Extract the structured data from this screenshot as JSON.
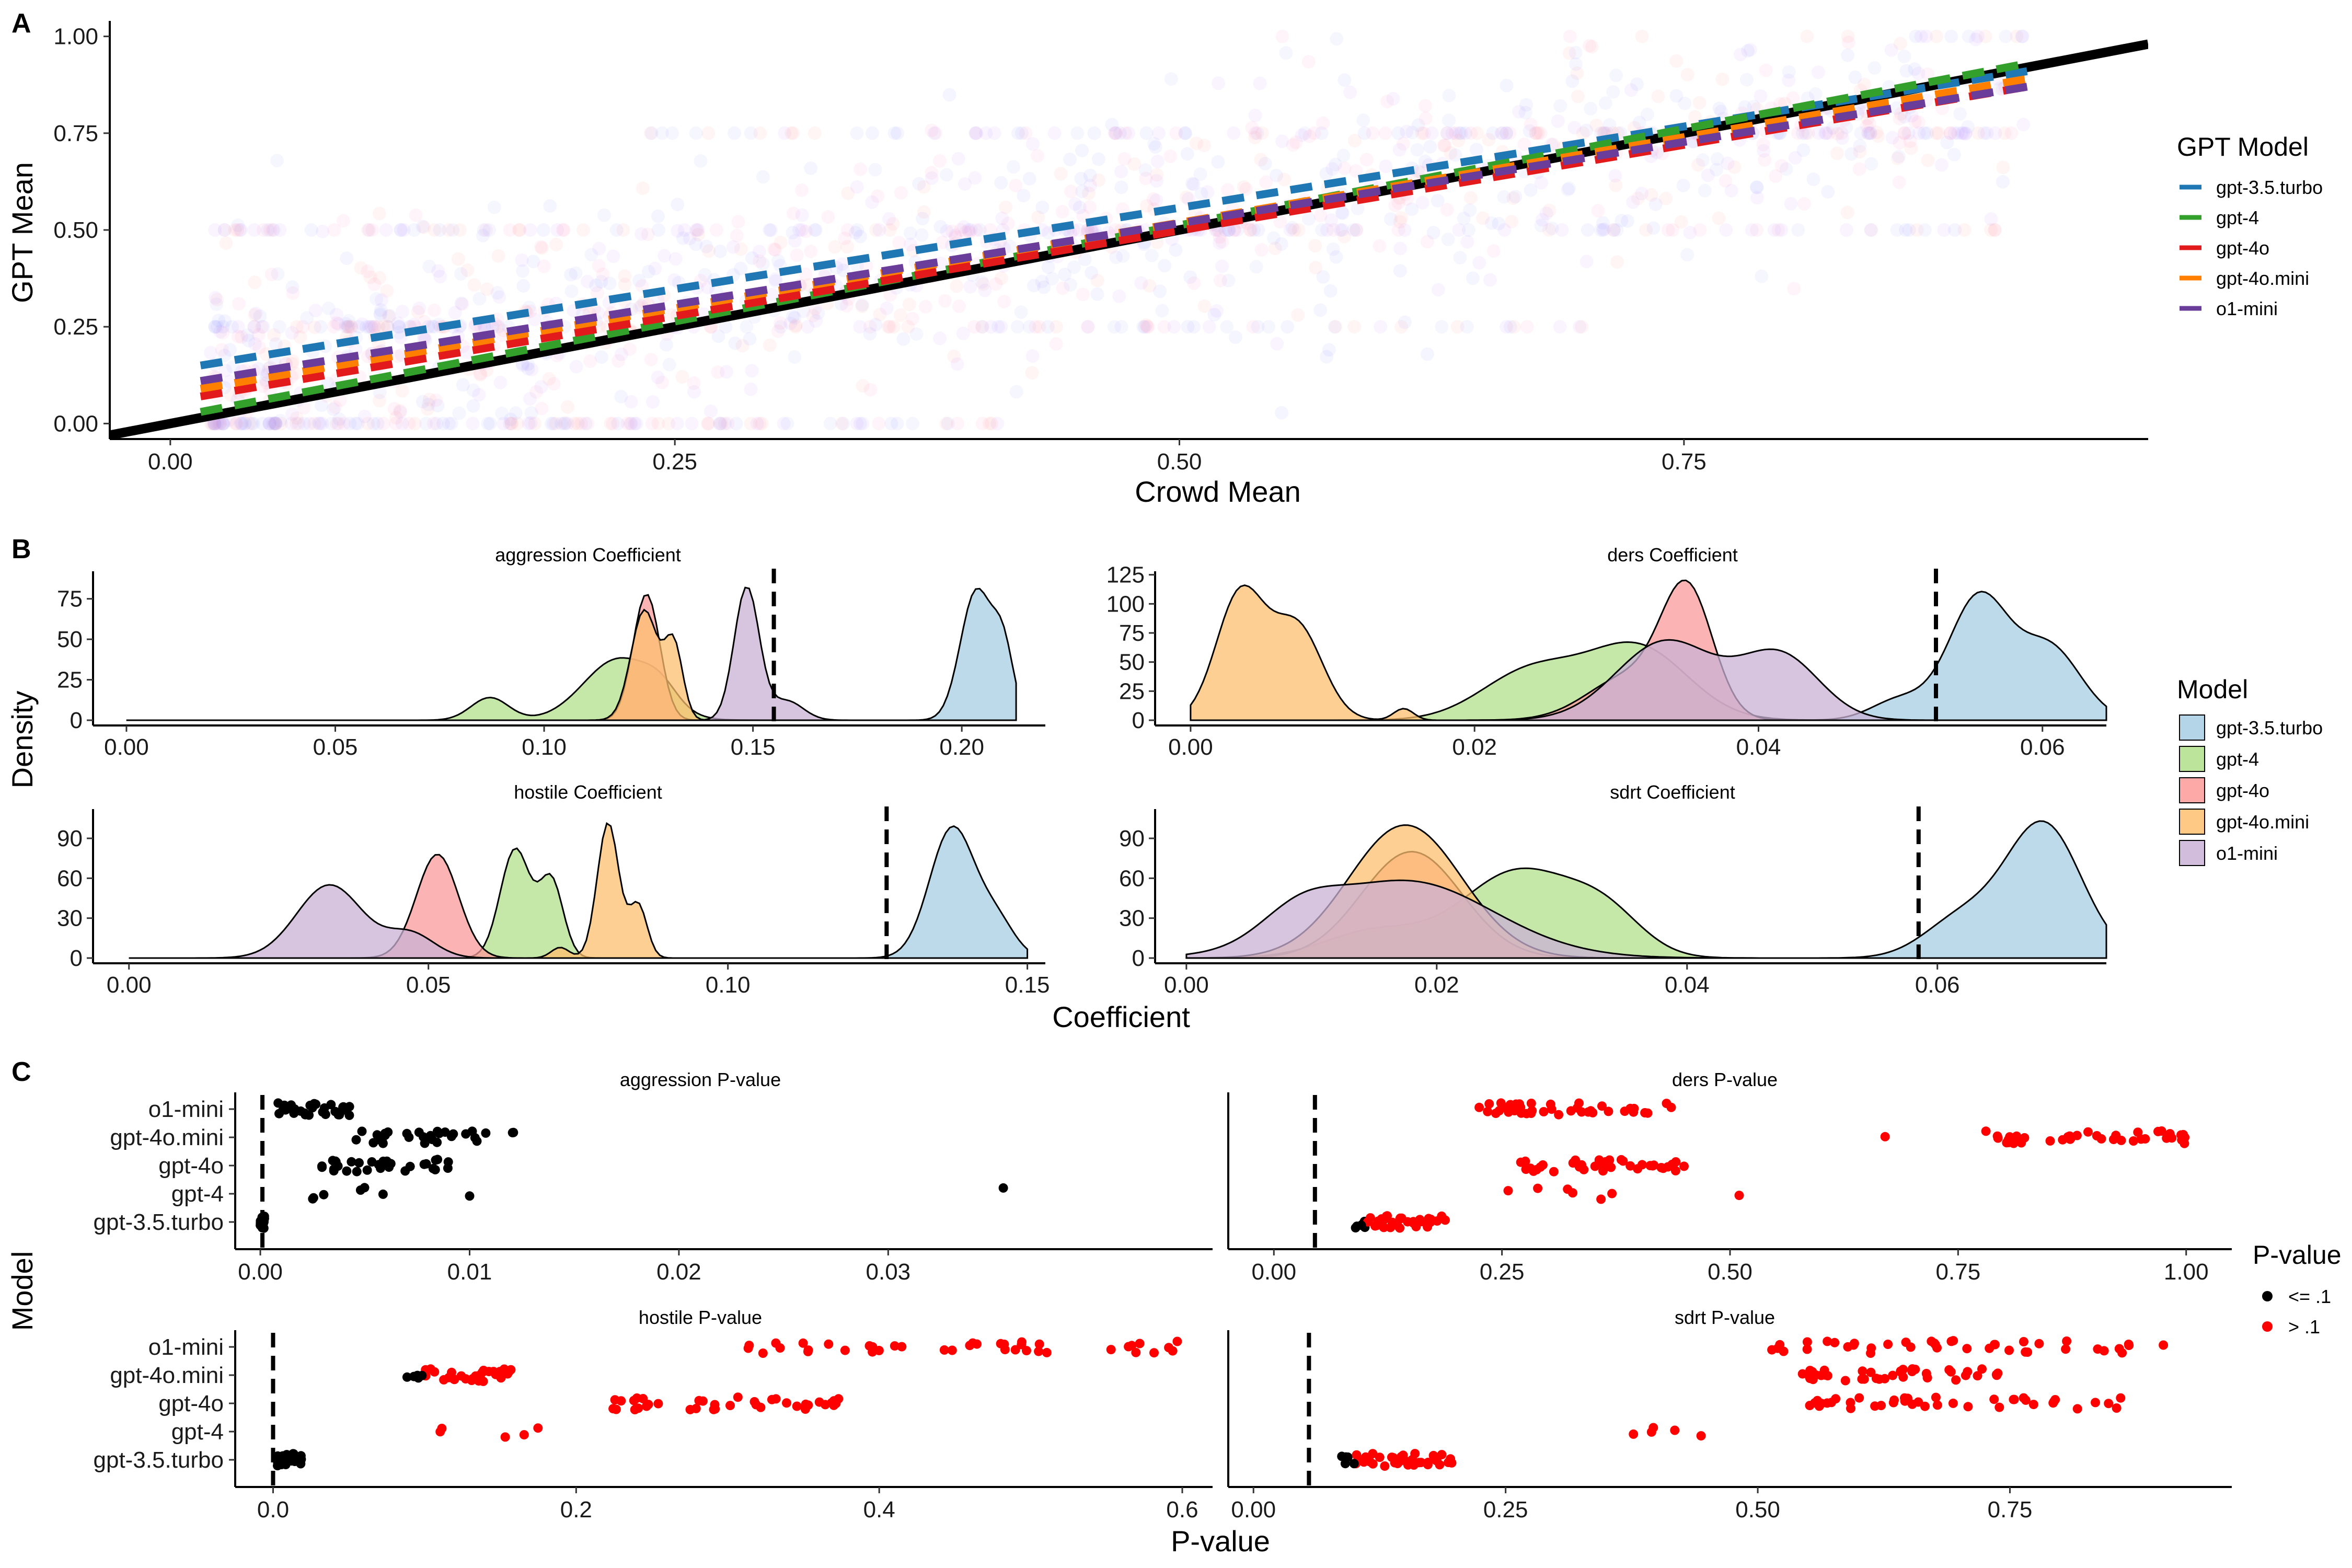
{
  "colors": {
    "gpt-3.5.turbo": "#1f78b4",
    "gpt-4": "#33a02c",
    "gpt-4o": "#e31a1c",
    "gpt-4o.mini": "#ff7f00",
    "o1-mini": "#6a3d9a",
    "fill_gpt-3.5.turbo": "#a6cee3",
    "fill_gpt-4": "#b2df8a",
    "fill_gpt-4o": "#fb9a99",
    "fill_gpt-4o.mini": "#fdbf6f",
    "fill_o1-mini": "#cab2d6",
    "pvalue_low": "#000000",
    "pvalue_high": "#ff0000"
  },
  "panels": {
    "A": {
      "letter": "A"
    },
    "B": {
      "letter": "B"
    },
    "C": {
      "letter": "C"
    }
  },
  "legends": {
    "gpt_model": {
      "title": "GPT Model",
      "items": [
        "gpt-3.5.turbo",
        "gpt-4",
        "gpt-4o",
        "gpt-4o.mini",
        "o1-mini"
      ]
    },
    "model": {
      "title": "Model",
      "items": [
        "gpt-3.5.turbo",
        "gpt-4",
        "gpt-4o",
        "gpt-4o.mini",
        "o1-mini"
      ]
    },
    "pvalue": {
      "title": "P-value",
      "items": [
        "<= .1",
        "> .1"
      ]
    }
  },
  "chart_data": [
    {
      "type": "scatter",
      "panel": "A",
      "xlabel": "Crowd Mean",
      "ylabel": "GPT Mean",
      "xlim": [
        -0.03,
        0.98
      ],
      "ylim": [
        -0.04,
        1.04
      ],
      "xticks": [
        "0.00",
        "0.25",
        "0.50",
        "0.75"
      ],
      "xtick_values": [
        0,
        0.25,
        0.5,
        0.75
      ],
      "yticks": [
        "0.00",
        "0.25",
        "0.50",
        "0.75",
        "1.00"
      ],
      "ytick_values": [
        0,
        0.25,
        0.5,
        0.75,
        1.0
      ],
      "identity_line": {
        "x": [
          -0.03,
          0.98
        ],
        "y": [
          -0.03,
          0.98
        ]
      },
      "series": [
        {
          "name": "gpt-3.5.turbo",
          "fit_x": [
            0.015,
            0.92
          ],
          "fit_y": [
            0.15,
            0.91
          ]
        },
        {
          "name": "gpt-4",
          "fit_x": [
            0.015,
            0.92
          ],
          "fit_y": [
            0.03,
            0.93
          ]
        },
        {
          "name": "gpt-4o",
          "fit_x": [
            0.015,
            0.92
          ],
          "fit_y": [
            0.07,
            0.87
          ]
        },
        {
          "name": "gpt-4o.mini",
          "fit_x": [
            0.015,
            0.92
          ],
          "fit_y": [
            0.09,
            0.89
          ]
        },
        {
          "name": "o1-mini",
          "fit_x": [
            0.015,
            0.92
          ],
          "fit_y": [
            0.11,
            0.87
          ]
        }
      ]
    },
    {
      "type": "area",
      "panel": "B",
      "title": "aggression Coefficient",
      "xlim": [
        -0.008,
        0.22
      ],
      "xticks": [
        "0.00",
        "0.05",
        "0.10",
        "0.15",
        "0.20"
      ],
      "xtick_values": [
        0,
        0.05,
        0.1,
        0.15,
        0.2
      ],
      "ylim": [
        0,
        92
      ],
      "yticks": [
        "0",
        "25",
        "50",
        "75"
      ],
      "ytick_values": [
        0,
        25,
        50,
        75
      ],
      "range": [
        0,
        0.213
      ],
      "reference_line": 0.155,
      "series": [
        {
          "name": "gpt-3.5.turbo",
          "peaks": [
            [
              0.2035,
              80,
              0.0038
            ],
            [
              0.21,
              40,
              0.0025
            ]
          ]
        },
        {
          "name": "gpt-4",
          "peaks": [
            [
              0.087,
              14,
              0.0045
            ],
            [
              0.118,
              38,
              0.0085
            ],
            [
              0.128,
              10,
              0.004
            ]
          ]
        },
        {
          "name": "gpt-4o",
          "peaks": [
            [
              0.1245,
              78,
              0.0032
            ]
          ]
        },
        {
          "name": "gpt-4o.mini",
          "peaks": [
            [
              0.124,
              68,
              0.0032
            ],
            [
              0.131,
              46,
              0.0022
            ]
          ]
        },
        {
          "name": "o1-mini",
          "peaks": [
            [
              0.1485,
              82,
              0.003
            ],
            [
              0.158,
              12,
              0.004
            ]
          ]
        }
      ]
    },
    {
      "type": "area",
      "panel": "B",
      "title": "ders Coefficient",
      "xlim": [
        -0.0025,
        0.0645
      ],
      "xticks": [
        "0.00",
        "0.02",
        "0.04",
        "0.06"
      ],
      "xtick_values": [
        0,
        0.02,
        0.04,
        0.06
      ],
      "ylim": [
        0,
        128
      ],
      "yticks": [
        "0",
        "25",
        "50",
        "75",
        "100",
        "125"
      ],
      "ytick_values": [
        0,
        25,
        50,
        75,
        100,
        125
      ],
      "range": [
        0,
        0.0645
      ],
      "reference_line": 0.0525,
      "series": [
        {
          "name": "gpt-3.5.turbo",
          "peaks": [
            [
              0.0555,
              105,
              0.0021
            ],
            [
              0.0605,
              62,
              0.0022
            ],
            [
              0.05,
              18,
              0.002
            ]
          ]
        },
        {
          "name": "gpt-4",
          "peaks": [
            [
              0.024,
              42,
              0.0035
            ],
            [
              0.0315,
              62,
              0.0035
            ]
          ]
        },
        {
          "name": "gpt-4o",
          "peaks": [
            [
              0.035,
              104,
              0.0018
            ],
            [
              0.031,
              38,
              0.003
            ]
          ]
        },
        {
          "name": "gpt-4o.mini",
          "peaks": [
            [
              0.0035,
              108,
              0.0017
            ],
            [
              0.0075,
              80,
              0.0018
            ],
            [
              0.015,
              10,
              0.0007
            ]
          ]
        },
        {
          "name": "o1-mini",
          "peaks": [
            [
              0.0335,
              68,
              0.0035
            ],
            [
              0.0415,
              55,
              0.0028
            ]
          ]
        }
      ]
    },
    {
      "type": "area",
      "panel": "B",
      "title": "hostile Coefficient",
      "xlim": [
        -0.006,
        0.153
      ],
      "xticks": [
        "0.00",
        "0.05",
        "0.10",
        "0.15"
      ],
      "xtick_values": [
        0,
        0.05,
        0.1,
        0.15
      ],
      "ylim": [
        0,
        112
      ],
      "yticks": [
        "0",
        "30",
        "60",
        "90"
      ],
      "ytick_values": [
        0,
        30,
        60,
        90
      ],
      "range": [
        0,
        0.15
      ],
      "reference_line": 0.1265,
      "series": [
        {
          "name": "gpt-3.5.turbo",
          "peaks": [
            [
              0.1375,
              98,
              0.0038
            ],
            [
              0.145,
              25,
              0.003
            ]
          ]
        },
        {
          "name": "gpt-4",
          "peaks": [
            [
              0.0645,
              82,
              0.0025
            ],
            [
              0.0705,
              58,
              0.002
            ]
          ]
        },
        {
          "name": "gpt-4o",
          "peaks": [
            [
              0.0515,
              78,
              0.0035
            ]
          ]
        },
        {
          "name": "gpt-4o.mini",
          "peaks": [
            [
              0.08,
              102,
              0.0018
            ],
            [
              0.085,
              40,
              0.0015
            ],
            [
              0.072,
              8,
              0.0015
            ]
          ]
        },
        {
          "name": "o1-mini",
          "peaks": [
            [
              0.0335,
              55,
              0.0055
            ],
            [
              0.047,
              18,
              0.004
            ]
          ]
        }
      ]
    },
    {
      "type": "area",
      "panel": "B",
      "title": "sdrt Coefficient",
      "xlim": [
        -0.0025,
        0.0735
      ],
      "xticks": [
        "0.00",
        "0.02",
        "0.04",
        "0.06"
      ],
      "xtick_values": [
        0,
        0.02,
        0.04,
        0.06
      ],
      "ylim": [
        0,
        112
      ],
      "yticks": [
        "0",
        "30",
        "60",
        "90"
      ],
      "ytick_values": [
        0,
        30,
        60,
        90
      ],
      "range": [
        0,
        0.0735
      ],
      "reference_line": 0.0585,
      "series": [
        {
          "name": "gpt-3.5.turbo",
          "peaks": [
            [
              0.0685,
              100,
              0.003
            ],
            [
              0.062,
              30,
              0.003
            ]
          ]
        },
        {
          "name": "gpt-4",
          "peaks": [
            [
              0.0265,
              65,
              0.0045
            ],
            [
              0.0335,
              28,
              0.003
            ],
            [
              0.015,
              20,
              0.004
            ]
          ]
        },
        {
          "name": "gpt-4o",
          "peaks": [
            [
              0.018,
              80,
              0.004
            ]
          ]
        },
        {
          "name": "gpt-4o.mini",
          "peaks": [
            [
              0.0175,
              100,
              0.0045
            ]
          ]
        },
        {
          "name": "o1-mini",
          "peaks": [
            [
              0.0175,
              58,
              0.007
            ],
            [
              0.009,
              20,
              0.003
            ]
          ]
        }
      ]
    },
    {
      "type": "scatter",
      "panel": "C",
      "title": "aggression P-value",
      "xlim": [
        -0.0012,
        0.0455
      ],
      "xticks": [
        "0.00",
        "0.01",
        "0.02",
        "0.03"
      ],
      "xtick_values": [
        0,
        0.01,
        0.02,
        0.03
      ],
      "categories": [
        "gpt-3.5.turbo",
        "gpt-4",
        "gpt-4o",
        "gpt-4o.mini",
        "o1-mini"
      ],
      "reference_line": 0.0001,
      "series": [
        {
          "name": "gpt-3.5.turbo",
          "range": [
            0.0,
            0.0002
          ],
          "count": 30,
          "outliers": []
        },
        {
          "name": "gpt-4",
          "range": [
            0.0025,
            0.0062
          ],
          "count": 6,
          "outliers": [
            0.01,
            0.0355
          ]
        },
        {
          "name": "gpt-4o",
          "range": [
            0.0028,
            0.0095
          ],
          "count": 30,
          "outliers": []
        },
        {
          "name": "gpt-4o.mini",
          "range": [
            0.0045,
            0.0122
          ],
          "count": 32,
          "outliers": []
        },
        {
          "name": "o1-mini",
          "range": [
            0.0008,
            0.0043
          ],
          "count": 30,
          "outliers": []
        }
      ]
    },
    {
      "type": "scatter",
      "panel": "C",
      "title": "ders P-value",
      "xlim": [
        -0.05,
        1.05
      ],
      "xticks": [
        "0.00",
        "0.25",
        "0.50",
        "0.75",
        "1.00"
      ],
      "xtick_values": [
        0,
        0.25,
        0.5,
        0.75,
        1.0
      ],
      "categories": [
        "gpt-3.5.turbo",
        "gpt-4",
        "gpt-4o",
        "gpt-4o.mini",
        "o1-mini"
      ],
      "reference_line": 0.045,
      "series": [
        {
          "name": "gpt-3.5.turbo",
          "range": [
            0.085,
            0.19
          ],
          "count": 40,
          "outliers": []
        },
        {
          "name": "gpt-4",
          "range": [
            0.25,
            0.44
          ],
          "count": 6,
          "outliers": [
            0.51
          ]
        },
        {
          "name": "gpt-4o",
          "range": [
            0.25,
            0.45
          ],
          "count": 40,
          "outliers": []
        },
        {
          "name": "gpt-4o.mini",
          "range": [
            0.78,
            1.0
          ],
          "count": 40,
          "outliers": [
            0.67
          ]
        },
        {
          "name": "o1-mini",
          "range": [
            0.22,
            0.44
          ],
          "count": 40,
          "outliers": []
        }
      ]
    },
    {
      "type": "scatter",
      "panel": "C",
      "title": "hostile P-value",
      "xlim": [
        -0.025,
        0.62
      ],
      "xticks": [
        "0.0",
        "0.2",
        "0.4",
        "0.6"
      ],
      "xtick_values": [
        0,
        0.2,
        0.4,
        0.6
      ],
      "categories": [
        "gpt-3.5.turbo",
        "gpt-4",
        "gpt-4o",
        "gpt-4o.mini",
        "o1-mini"
      ],
      "reference_line": 0.0,
      "series": [
        {
          "name": "gpt-3.5.turbo",
          "range": [
            0.002,
            0.02
          ],
          "count": 30,
          "outliers": []
        },
        {
          "name": "gpt-4",
          "range": [
            0.11,
            0.18
          ],
          "count": 5,
          "outliers": []
        },
        {
          "name": "gpt-4o",
          "range": [
            0.22,
            0.375
          ],
          "count": 40,
          "outliers": []
        },
        {
          "name": "gpt-4o.mini",
          "range": [
            0.088,
            0.16
          ],
          "count": 40,
          "outliers": []
        },
        {
          "name": "o1-mini",
          "range": [
            0.31,
            0.6
          ],
          "count": 40,
          "outliers": []
        }
      ]
    },
    {
      "type": "scatter",
      "panel": "C",
      "title": "sdrt P-value",
      "xlim": [
        -0.025,
        0.97
      ],
      "xticks": [
        "0.00",
        "0.25",
        "0.50",
        "0.75"
      ],
      "xtick_values": [
        0,
        0.25,
        0.5,
        0.75
      ],
      "categories": [
        "gpt-3.5.turbo",
        "gpt-4",
        "gpt-4o",
        "gpt-4o.mini",
        "o1-mini"
      ],
      "reference_line": 0.055,
      "series": [
        {
          "name": "gpt-3.5.turbo",
          "range": [
            0.085,
            0.2
          ],
          "count": 40,
          "outliers": []
        },
        {
          "name": "gpt-4",
          "range": [
            0.36,
            0.5
          ],
          "count": 5,
          "outliers": []
        },
        {
          "name": "gpt-4o",
          "range": [
            0.55,
            0.86
          ],
          "count": 40,
          "outliers": []
        },
        {
          "name": "gpt-4o.mini",
          "range": [
            0.54,
            0.74
          ],
          "count": 40,
          "outliers": []
        },
        {
          "name": "o1-mini",
          "range": [
            0.51,
            0.91
          ],
          "count": 40,
          "outliers": []
        }
      ]
    }
  ],
  "axes_titles": {
    "B_y": "Density",
    "B_x": "Coefficient",
    "C_y": "Model",
    "C_x": "P-value"
  }
}
